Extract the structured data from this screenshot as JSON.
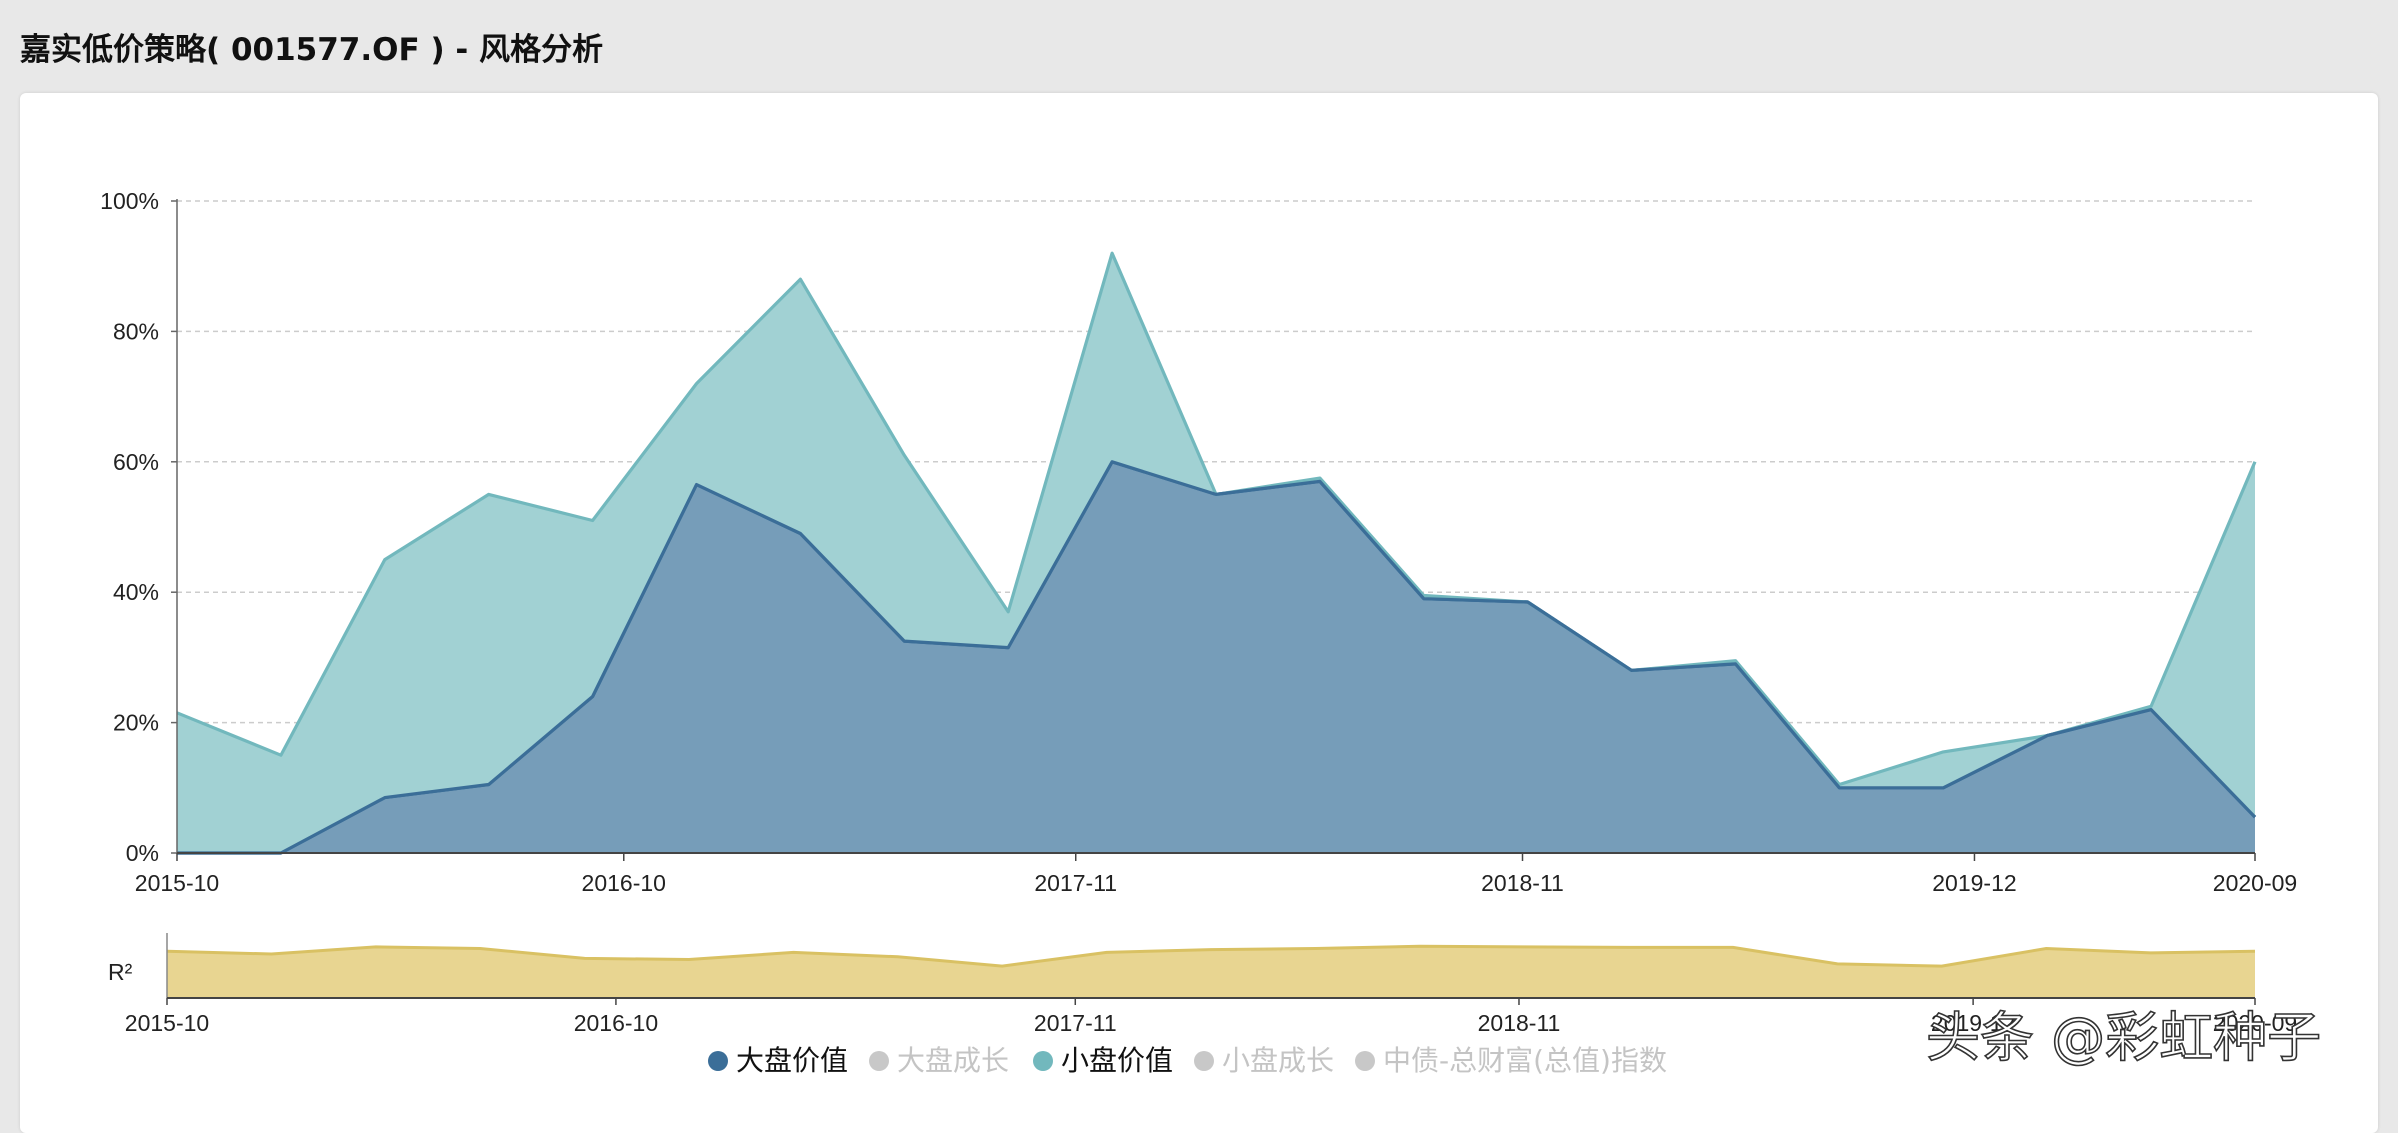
{
  "page": {
    "title": "嘉实低价策略( 001577.OF ) - 风格分析"
  },
  "watermark": "头条 @彩虹种子",
  "colors": {
    "large_value_fill": "#769db9",
    "large_value_line": "#3b6e98",
    "small_value_fill": "#a1d1d3",
    "small_value_line": "#72b8bd",
    "r2_fill": "#e8d591",
    "r2_line": "#d9c163",
    "inactive": "#c8c8c8",
    "grid": "#cccccc"
  },
  "chart_data": [
    {
      "type": "area",
      "stacked": true,
      "title": "",
      "xlabel": "",
      "ylabel": "",
      "ylim": [
        0,
        100
      ],
      "y_ticks": [
        "0%",
        "20%",
        "40%",
        "60%",
        "80%",
        "100%"
      ],
      "x_ticks": [
        "2015-10",
        "2016-10",
        "2017-11",
        "2018-11",
        "2019-12",
        "2020-09"
      ],
      "grid": "horizontal dashed",
      "legend_position": "bottom",
      "series": [
        {
          "name": "大盘价值",
          "color": "#3b6e98",
          "values": [
            0,
            0,
            8.5,
            10.5,
            24,
            56.5,
            49,
            32.5,
            31.5,
            60,
            55,
            57,
            39,
            38.5,
            28,
            29,
            10,
            10,
            18,
            22,
            5.5
          ]
        },
        {
          "name": "小盘价值",
          "color": "#72b8bd",
          "values": [
            21.5,
            15,
            36.5,
            44.5,
            27,
            15.5,
            39,
            28.5,
            5.5,
            32,
            0,
            0.5,
            0.5,
            0,
            0,
            0.5,
            0.5,
            5.5,
            0,
            0.5,
            54.5
          ]
        }
      ],
      "legend": [
        {
          "name": "大盘价值",
          "active": true,
          "color": "#3b6e98"
        },
        {
          "name": "大盘成长",
          "active": false,
          "color": "#c8c8c8"
        },
        {
          "name": "小盘价值",
          "active": true,
          "color": "#72b8bd"
        },
        {
          "name": "小盘成长",
          "active": false,
          "color": "#c8c8c8"
        },
        {
          "name": "中债-总财富(总值)指数",
          "active": false,
          "color": "#c8c8c8"
        }
      ]
    },
    {
      "type": "area",
      "title": "",
      "ylabel": "R²",
      "x_ticks": [
        "2015-10",
        "2016-10",
        "2017-11",
        "2018-11",
        "2019-12",
        "2020-09"
      ],
      "ylim": [
        0,
        1
      ],
      "values": [
        0.85,
        0.8,
        0.93,
        0.9,
        0.72,
        0.7,
        0.83,
        0.75,
        0.58,
        0.83,
        0.88,
        0.9,
        0.94,
        0.93,
        0.92,
        0.92,
        0.62,
        0.58,
        0.9,
        0.82,
        0.85
      ]
    }
  ]
}
